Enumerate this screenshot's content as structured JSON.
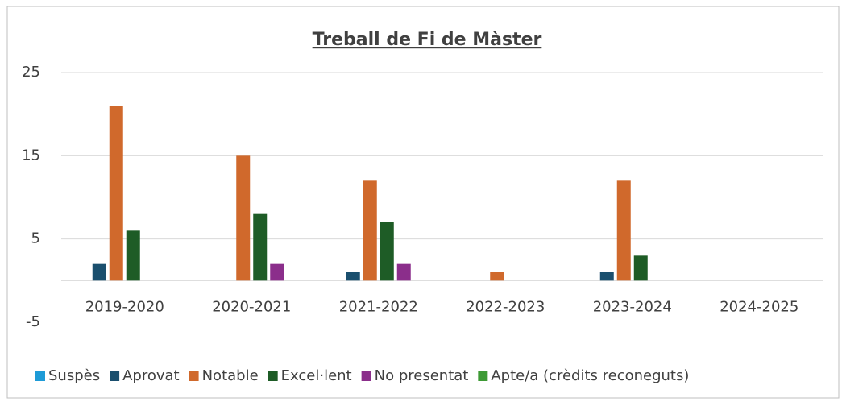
{
  "chart_data": {
    "type": "bar",
    "title": "Treball de Fi de Màster",
    "categories": [
      "2019-2020",
      "2020-2021",
      "2021-2022",
      "2022-2023",
      "2023-2024",
      "2024-2025"
    ],
    "series": [
      {
        "name": "Suspès",
        "color": "#1e9bd7",
        "values": [
          0,
          0,
          0,
          0,
          0,
          0
        ]
      },
      {
        "name": "Aprovat",
        "color": "#1a4f6e",
        "values": [
          2,
          0,
          1,
          0,
          1,
          0
        ]
      },
      {
        "name": "Notable",
        "color": "#d0692c",
        "values": [
          21,
          15,
          12,
          1,
          12,
          0
        ]
      },
      {
        "name": "Excel·lent",
        "color": "#1e5c26",
        "values": [
          6,
          8,
          7,
          0,
          3,
          0
        ]
      },
      {
        "name": "No presentat",
        "color": "#8b2e8b",
        "values": [
          0,
          2,
          2,
          0,
          0,
          0
        ]
      },
      {
        "name": "Apte/a (crèdits reconeguts)",
        "color": "#3d9a35",
        "values": [
          0,
          0,
          0,
          0,
          0,
          0
        ]
      }
    ],
    "ylim": [
      -5,
      25
    ],
    "yticks": [
      -5,
      5,
      15,
      25
    ],
    "grid": true,
    "legend": "bottom"
  }
}
